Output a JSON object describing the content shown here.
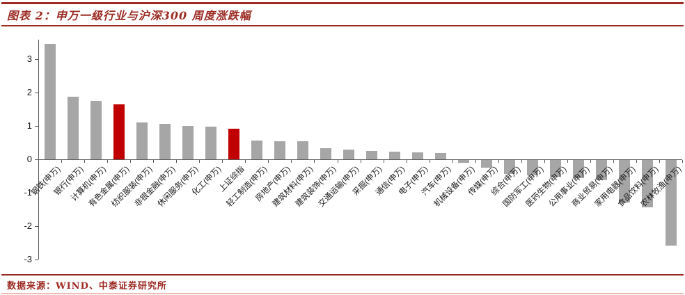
{
  "header": {
    "title": "图表 2：申万一级行业与沪深300 周度涨跌幅"
  },
  "footer": {
    "source": "数据来源：WIND、中泰证券研究所"
  },
  "colors": {
    "accent_red": "#9C2B23",
    "bar_gray": "#A6A6A6",
    "bar_red": "#C00000",
    "axis_gray": "#595959",
    "bottom_strip_pink": "#EDBCB6"
  },
  "chart_data": {
    "type": "bar",
    "title": "申万一级行业与沪深300 周度涨跌幅",
    "xlabel": "",
    "ylabel": "",
    "categories": [
      "钢铁(申万)",
      "银行(申万)",
      "计算机(申万)",
      "有色金属(申万)",
      "纺织服装(申万)",
      "非银金融(申万)",
      "休闲服务(申万)",
      "化工(申万)",
      "上证综指",
      "轻工制造(申万)",
      "房地产(申万)",
      "建筑材料(申万)",
      "建筑装饰(申万)",
      "交通运输(申万)",
      "采掘(申万)",
      "通信(申万)",
      "电子(申万)",
      "汽车(申万)",
      "机械设备(申万)",
      "传媒(申万)",
      "综合(申万)",
      "国防军工(申万)",
      "医药生物(申万)",
      "公用事业(申万)",
      "商业贸易(申万)",
      "家用电器(申万)",
      "食品饮料(申万)",
      "农林牧渔(申万)"
    ],
    "values": [
      3.45,
      1.87,
      1.76,
      1.65,
      1.1,
      1.07,
      1.0,
      0.98,
      0.92,
      0.56,
      0.55,
      0.55,
      0.34,
      0.3,
      0.26,
      0.24,
      0.21,
      0.19,
      -0.08,
      -0.23,
      -0.42,
      -0.46,
      -0.5,
      -0.54,
      -0.61,
      -1.27,
      -1.41,
      -2.56
    ],
    "highlight_indices": [
      3,
      8
    ],
    "highlighted_categories": [
      "有色金属(申万)",
      "上证综指"
    ],
    "bar_color": "#A6A6A6",
    "highlight_color": "#C00000",
    "yticks": [
      3,
      2,
      1,
      0,
      -1,
      -2,
      -3
    ],
    "ylim": [
      -3,
      3.6
    ],
    "grid": false,
    "legend": null
  }
}
